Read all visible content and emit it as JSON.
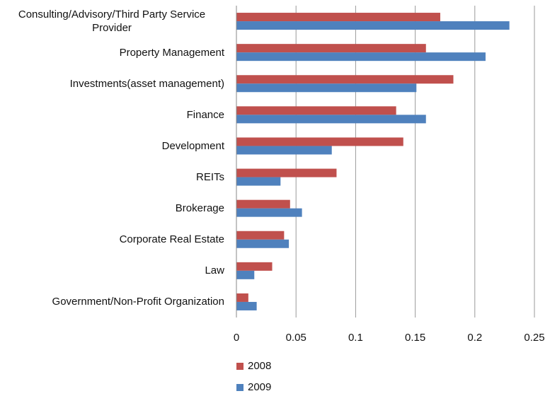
{
  "chart_data": {
    "type": "hbar",
    "categories": [
      "Consulting/Advisory/Third Party Service Provider",
      "Property Management",
      "Investments(asset management)",
      "Finance",
      "Development",
      "REITs",
      "Brokerage",
      "Corporate Real Estate",
      "Law",
      "Government/Non-Profit Organization"
    ],
    "series": [
      {
        "name": "2008",
        "color": "#c0504d",
        "values": [
          0.171,
          0.159,
          0.182,
          0.134,
          0.14,
          0.084,
          0.045,
          0.04,
          0.03,
          0.01
        ]
      },
      {
        "name": "2009",
        "color": "#4f81bd",
        "values": [
          0.229,
          0.209,
          0.151,
          0.159,
          0.08,
          0.037,
          0.055,
          0.044,
          0.015,
          0.017
        ]
      }
    ],
    "xlim": [
      0,
      0.25
    ],
    "xticks": [
      0,
      0.05,
      0.1,
      0.15,
      0.2,
      0.25
    ],
    "grid": true,
    "legend": "bottom"
  }
}
